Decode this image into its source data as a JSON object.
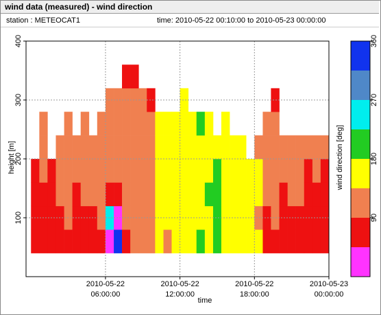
{
  "chart_data": {
    "type": "heatmap",
    "title": "wind data (measured) - wind direction",
    "station": "station : METEOCAT1",
    "time_range": "time: 2010-05-22 00:10:00 to 2010-05-23 00:00:00",
    "xlabel": "time",
    "ylabel": "height [m]",
    "colorbar_label": "wind direction [deg]",
    "xlim": [
      -0.4,
      24
    ],
    "xticks": [
      {
        "value": 6,
        "label": "2010-05-22 06:00:00"
      },
      {
        "value": 12,
        "label": "2010-05-22 12:00:00"
      },
      {
        "value": 18,
        "label": "2010-05-22 18:00:00"
      },
      {
        "value": 24,
        "label": "2010-05-23 00:00:00"
      }
    ],
    "ylim": [
      0,
      400
    ],
    "yticks": [
      100,
      200,
      300,
      400
    ],
    "grid": true,
    "x": [
      0,
      0.67,
      1.33,
      2,
      2.67,
      3.33,
      4,
      4.67,
      5.33,
      6,
      6.67,
      7.33,
      8,
      8.67,
      9.33,
      10,
      10.67,
      11.33,
      12,
      12.67,
      13.33,
      14,
      14.67,
      15.33,
      16,
      16.67,
      17.33,
      18,
      18.67,
      19.33,
      20,
      20.67,
      21.33,
      22,
      22.67,
      23.33,
      24
    ],
    "y": [
      40,
      80,
      120,
      160,
      200,
      240,
      280,
      320,
      360
    ],
    "values": [
      [
        70,
        70,
        70,
        70,
        null,
        null,
        null,
        null
      ],
      [
        70,
        70,
        70,
        110,
        110,
        110,
        null,
        null
      ],
      [
        70,
        70,
        70,
        70,
        null,
        null,
        null,
        null
      ],
      [
        70,
        70,
        110,
        110,
        110,
        null,
        null,
        null
      ],
      [
        70,
        110,
        110,
        110,
        110,
        110,
        null,
        null
      ],
      [
        70,
        70,
        70,
        110,
        110,
        null,
        null,
        null
      ],
      [
        70,
        70,
        110,
        110,
        110,
        110,
        null,
        null
      ],
      [
        70,
        70,
        110,
        110,
        110,
        null,
        null,
        null
      ],
      [
        70,
        110,
        110,
        110,
        110,
        110,
        null,
        null
      ],
      [
        20,
        240,
        70,
        110,
        110,
        110,
        110,
        null
      ],
      [
        340,
        20,
        70,
        110,
        110,
        110,
        110,
        null
      ],
      [
        70,
        110,
        110,
        110,
        110,
        110,
        110,
        70
      ],
      [
        110,
        110,
        110,
        110,
        110,
        110,
        110,
        70
      ],
      [
        110,
        110,
        110,
        110,
        110,
        110,
        110,
        null
      ],
      [
        110,
        110,
        110,
        110,
        110,
        110,
        70,
        null
      ],
      [
        160,
        160,
        160,
        160,
        160,
        160,
        null,
        null
      ],
      [
        110,
        160,
        160,
        160,
        160,
        160,
        null,
        null
      ],
      [
        160,
        160,
        160,
        160,
        160,
        160,
        null,
        null
      ],
      [
        160,
        160,
        160,
        160,
        160,
        160,
        160,
        null
      ],
      [
        160,
        160,
        160,
        160,
        160,
        160,
        null,
        null
      ],
      [
        200,
        160,
        160,
        160,
        160,
        200,
        null,
        null
      ],
      [
        160,
        160,
        200,
        160,
        160,
        160,
        null,
        null
      ],
      [
        200,
        200,
        200,
        200,
        160,
        null,
        null,
        null
      ],
      [
        160,
        160,
        160,
        160,
        160,
        160,
        null,
        null
      ],
      [
        160,
        160,
        160,
        160,
        160,
        null,
        null,
        null
      ],
      [
        160,
        160,
        160,
        160,
        160,
        null,
        null,
        null
      ],
      [
        160,
        160,
        160,
        160,
        null,
        null,
        null,
        null
      ],
      [
        160,
        110,
        160,
        160,
        110,
        null,
        null,
        null
      ],
      [
        70,
        70,
        110,
        110,
        110,
        110,
        null,
        null
      ],
      [
        70,
        110,
        110,
        110,
        110,
        110,
        70,
        null
      ],
      [
        70,
        70,
        70,
        110,
        110,
        null,
        null,
        null
      ],
      [
        70,
        70,
        110,
        110,
        110,
        null,
        null,
        null
      ],
      [
        70,
        70,
        110,
        110,
        110,
        null,
        null,
        null
      ],
      [
        70,
        70,
        70,
        70,
        110,
        null,
        null,
        null
      ],
      [
        70,
        70,
        70,
        110,
        110,
        null,
        null,
        null
      ],
      [
        70,
        70,
        70,
        70,
        110,
        null,
        null,
        null
      ]
    ],
    "colorscale": {
      "bounds": [
        0,
        45,
        90,
        135,
        180,
        225,
        270,
        315,
        360
      ],
      "colors": [
        "#ff33ff",
        "#ee1111",
        "#f08050",
        "#ffff00",
        "#22cc22",
        "#00eeee",
        "#4f88c8",
        "#1133ee"
      ]
    },
    "cticks": [
      90,
      180,
      270,
      360
    ]
  }
}
